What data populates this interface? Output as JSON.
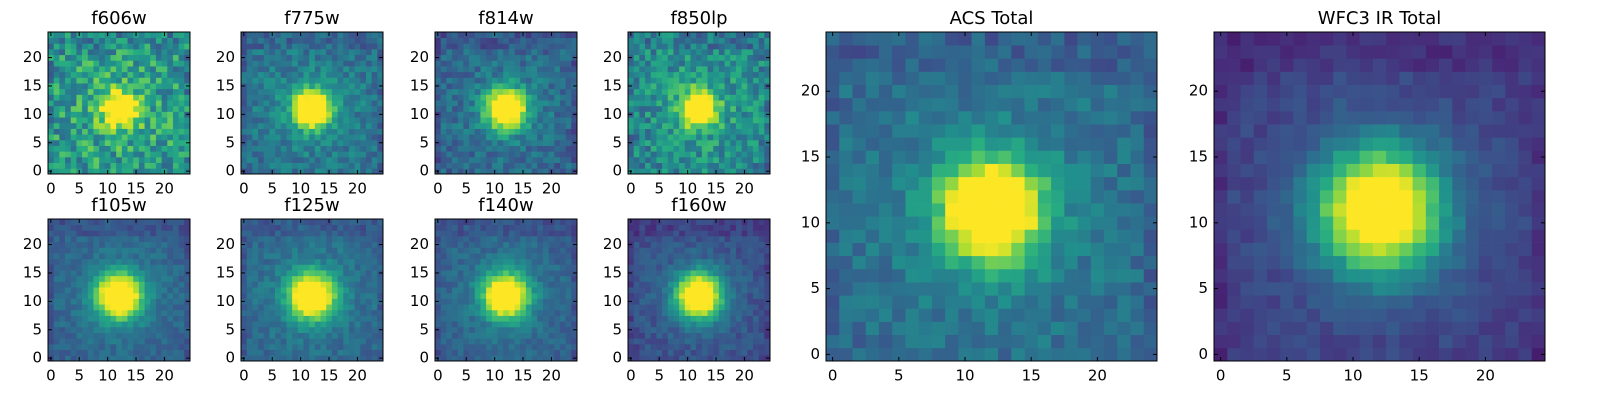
{
  "chart_data": [
    {
      "type": "heatmap",
      "title": "f606w",
      "grid_size": 25,
      "xlim": [
        -0.5,
        24.5
      ],
      "ylim": [
        -0.5,
        24.5
      ],
      "xticks": [
        0,
        5,
        10,
        15,
        20
      ],
      "yticks": [
        0,
        5,
        10,
        15,
        20
      ],
      "colormap": "viridis",
      "source_center": [
        12,
        11
      ],
      "peak_value": 0.85,
      "background_value": 0.52,
      "source_width": 2.0,
      "noise_amplitude": 0.42,
      "seed": 11
    },
    {
      "type": "heatmap",
      "title": "f775w",
      "grid_size": 25,
      "xlim": [
        -0.5,
        24.5
      ],
      "ylim": [
        -0.5,
        24.5
      ],
      "xticks": [
        0,
        5,
        10,
        15,
        20
      ],
      "yticks": [
        0,
        5,
        10,
        15,
        20
      ],
      "colormap": "viridis",
      "source_center": [
        12,
        11
      ],
      "peak_value": 0.98,
      "background_value": 0.36,
      "source_width": 2.2,
      "noise_amplitude": 0.22,
      "seed": 23
    },
    {
      "type": "heatmap",
      "title": "f814w",
      "grid_size": 25,
      "xlim": [
        -0.5,
        24.5
      ],
      "ylim": [
        -0.5,
        24.5
      ],
      "xticks": [
        0,
        5,
        10,
        15,
        20
      ],
      "yticks": [
        0,
        5,
        10,
        15,
        20
      ],
      "colormap": "viridis",
      "source_center": [
        12,
        11
      ],
      "peak_value": 1.0,
      "background_value": 0.3,
      "source_width": 2.4,
      "noise_amplitude": 0.22,
      "seed": 37
    },
    {
      "type": "heatmap",
      "title": "f850lp",
      "grid_size": 25,
      "xlim": [
        -0.5,
        24.5
      ],
      "ylim": [
        -0.5,
        24.5
      ],
      "xticks": [
        0,
        5,
        10,
        15,
        20
      ],
      "yticks": [
        0,
        5,
        10,
        15,
        20
      ],
      "colormap": "viridis",
      "source_center": [
        12,
        11
      ],
      "peak_value": 0.95,
      "background_value": 0.45,
      "source_width": 2.0,
      "noise_amplitude": 0.34,
      "seed": 41
    },
    {
      "type": "heatmap",
      "title": "f105w",
      "grid_size": 25,
      "xlim": [
        -0.5,
        24.5
      ],
      "ylim": [
        -0.5,
        24.5
      ],
      "xticks": [
        0,
        5,
        10,
        15,
        20
      ],
      "yticks": [
        0,
        5,
        10,
        15,
        20
      ],
      "colormap": "viridis",
      "source_center": [
        12,
        11
      ],
      "peak_value": 1.0,
      "background_value": 0.28,
      "source_width": 2.7,
      "noise_amplitude": 0.13,
      "seed": 53
    },
    {
      "type": "heatmap",
      "title": "f125w",
      "grid_size": 25,
      "xlim": [
        -0.5,
        24.5
      ],
      "ylim": [
        -0.5,
        24.5
      ],
      "xticks": [
        0,
        5,
        10,
        15,
        20
      ],
      "yticks": [
        0,
        5,
        10,
        15,
        20
      ],
      "colormap": "viridis",
      "source_center": [
        12,
        11
      ],
      "peak_value": 1.0,
      "background_value": 0.3,
      "source_width": 2.7,
      "noise_amplitude": 0.14,
      "seed": 67
    },
    {
      "type": "heatmap",
      "title": "f140w",
      "grid_size": 25,
      "xlim": [
        -0.5,
        24.5
      ],
      "ylim": [
        -0.5,
        24.5
      ],
      "xticks": [
        0,
        5,
        10,
        15,
        20
      ],
      "yticks": [
        0,
        5,
        10,
        15,
        20
      ],
      "colormap": "viridis",
      "source_center": [
        12,
        11
      ],
      "peak_value": 1.0,
      "background_value": 0.28,
      "source_width": 2.6,
      "noise_amplitude": 0.14,
      "seed": 71
    },
    {
      "type": "heatmap",
      "title": "f160w",
      "grid_size": 25,
      "xlim": [
        -0.5,
        24.5
      ],
      "ylim": [
        -0.5,
        24.5
      ],
      "xticks": [
        0,
        5,
        10,
        15,
        20
      ],
      "yticks": [
        0,
        5,
        10,
        15,
        20
      ],
      "colormap": "viridis",
      "source_center": [
        12,
        11
      ],
      "peak_value": 1.0,
      "background_value": 0.2,
      "source_width": 2.8,
      "noise_amplitude": 0.14,
      "seed": 83
    },
    {
      "type": "heatmap",
      "title": "ACS Total",
      "grid_size": 25,
      "xlim": [
        -0.5,
        24.5
      ],
      "ylim": [
        -0.5,
        24.5
      ],
      "xticks": [
        0,
        5,
        10,
        15,
        20
      ],
      "yticks": [
        0,
        5,
        10,
        15,
        20
      ],
      "colormap": "viridis",
      "source_center": [
        12,
        11
      ],
      "peak_value": 1.0,
      "background_value": 0.32,
      "source_width": 2.6,
      "noise_amplitude": 0.17,
      "seed": 97
    },
    {
      "type": "heatmap",
      "title": "WFC3 IR Total",
      "grid_size": 25,
      "xlim": [
        -0.5,
        24.5
      ],
      "ylim": [
        -0.5,
        24.5
      ],
      "xticks": [
        0,
        5,
        10,
        15,
        20
      ],
      "yticks": [
        0,
        5,
        10,
        15,
        20
      ],
      "colormap": "viridis",
      "source_center": [
        12,
        11
      ],
      "peak_value": 1.0,
      "background_value": 0.14,
      "source_width": 3.2,
      "noise_amplitude": 0.1,
      "seed": 101
    }
  ]
}
